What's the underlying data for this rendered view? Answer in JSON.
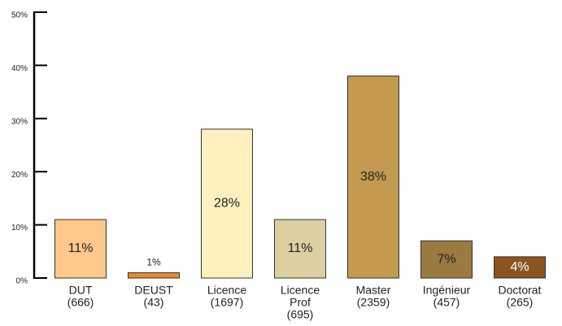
{
  "chart_data": {
    "type": "bar",
    "categories": [
      [
        "DUT",
        "(666)"
      ],
      [
        "DEUST",
        "(43)"
      ],
      [
        "Licence",
        "(1697)"
      ],
      [
        "Licence",
        "Prof",
        "(695)"
      ],
      [
        "Master",
        "(2359)"
      ],
      [
        "Ingénieur",
        "(457)"
      ],
      [
        "Doctorat",
        "(265)"
      ]
    ],
    "values": [
      11,
      1,
      28,
      11,
      38,
      7,
      4
    ],
    "value_labels": [
      "11%",
      "1%",
      "28%",
      "11%",
      "38%",
      "7%",
      "4%"
    ],
    "colors": [
      "#fdc98a",
      "#e8892a",
      "#fff0c0",
      "#dccfa0",
      "#c49a50",
      "#9a7a40",
      "#8c5420"
    ],
    "label_colors": [
      "#222222",
      "#222222",
      "#222222",
      "#222222",
      "#222222",
      "#222222",
      "#ffffff"
    ],
    "ylim": [
      0,
      50
    ],
    "yticks": [
      {
        "value": 0,
        "label": "0%"
      },
      {
        "value": 10,
        "label": "10%"
      },
      {
        "value": 20,
        "label": "20%"
      },
      {
        "value": 30,
        "label": "30%"
      },
      {
        "value": 40,
        "label": "40%"
      },
      {
        "value": 50,
        "label": "50%"
      }
    ]
  }
}
